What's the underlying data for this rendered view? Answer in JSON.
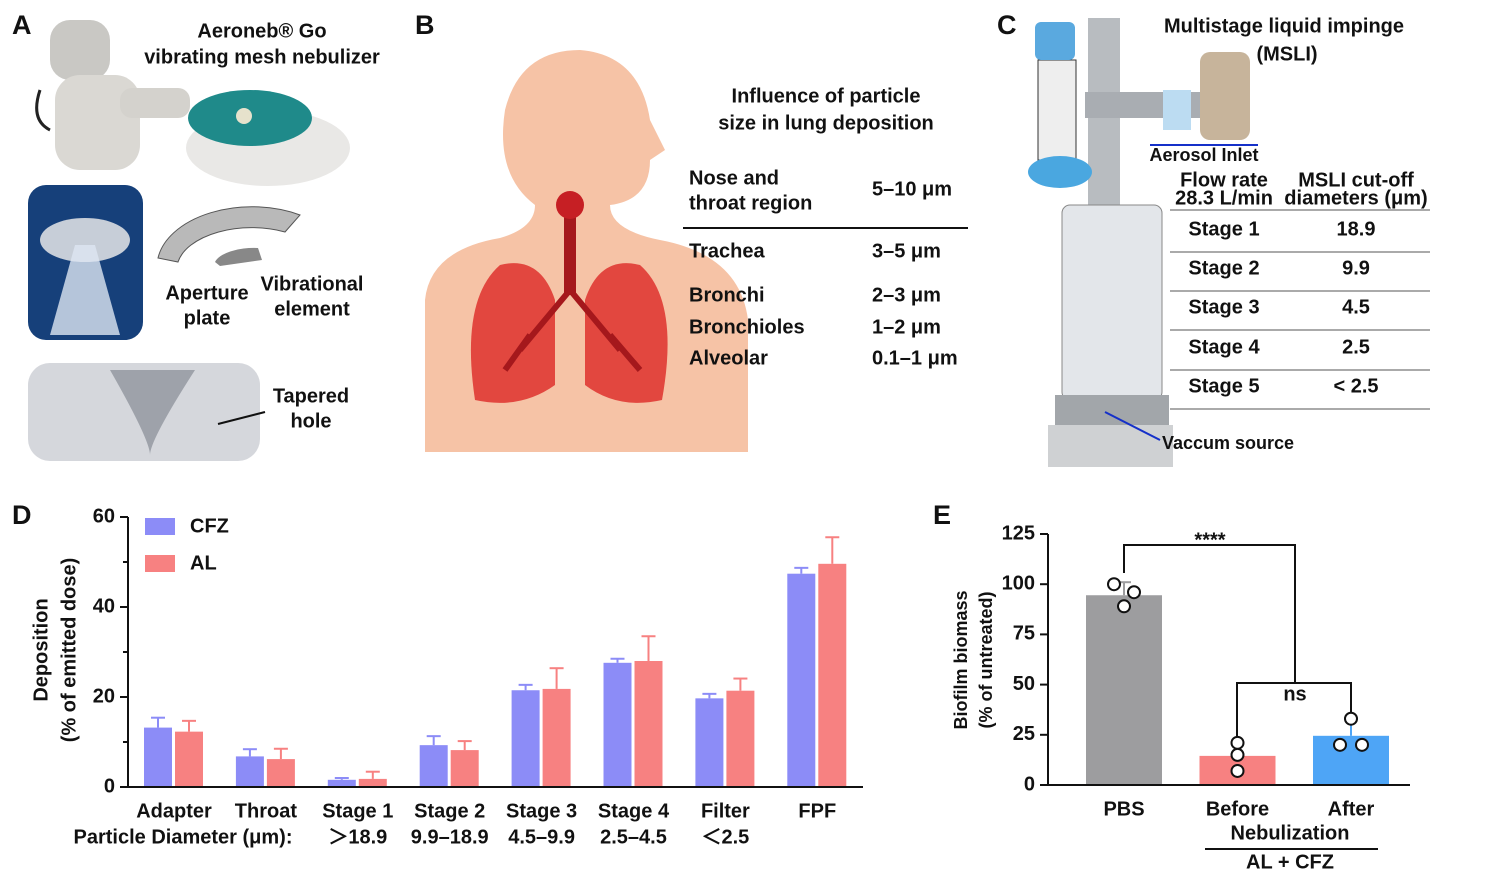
{
  "panel_a": {
    "label": "A",
    "title": [
      "Aeroneb® Go",
      "vibrating mesh nebulizer"
    ],
    "aperture": [
      "Aperture",
      "plate"
    ],
    "vibrational": [
      "Vibrational",
      "element"
    ],
    "tapered": [
      "Tapered",
      "hole"
    ]
  },
  "panel_b": {
    "label": "B",
    "title": [
      "Influence of particle",
      "size in lung deposition"
    ],
    "rows": [
      {
        "region": [
          "Nose and",
          "throat region"
        ],
        "size": "5–10 μm"
      },
      {
        "region": [
          "Trachea"
        ],
        "size": "3–5 μm"
      },
      {
        "region": [
          "Bronchi"
        ],
        "size": "2–3 μm"
      },
      {
        "region": [
          "Bronchioles"
        ],
        "size": "1–2 μm"
      },
      {
        "region": [
          "Alveolar"
        ],
        "size": "0.1–1 μm"
      }
    ]
  },
  "panel_c": {
    "label": "C",
    "title": [
      "Multistage liquid impinge",
      "(MSLI)"
    ],
    "inlet": "Aerosol Inlet",
    "vacuum": "Vaccum source",
    "table": {
      "header": [
        [
          "Flow rate",
          "28.3 L/min"
        ],
        [
          "MSLI cut-off",
          "diameters (μm)"
        ]
      ],
      "rows": [
        [
          "Stage 1",
          "18.9"
        ],
        [
          "Stage 2",
          "9.9"
        ],
        [
          "Stage 3",
          "4.5"
        ],
        [
          "Stage 4",
          "2.5"
        ],
        [
          "Stage 5",
          "< 2.5"
        ]
      ]
    }
  },
  "chart_data": [
    {
      "type": "bar",
      "label": "D",
      "ylabel": [
        "Deposition",
        "(% of emitted dose)"
      ],
      "categories": [
        "Adapter",
        "Throat",
        "Stage 1",
        "Stage 2",
        "Stage 3",
        "Stage 4",
        "Filter",
        "FPF"
      ],
      "category_sublabels": [
        null,
        null,
        "＞18.9",
        "9.9–18.9",
        "4.5–9.9",
        "2.5–4.5",
        "＜2.5",
        null
      ],
      "sublabel_title": "Particle Diameter (μm):",
      "ylim": [
        0,
        60
      ],
      "yticks": [
        0,
        20,
        40,
        60
      ],
      "yminorticks": [
        10,
        30,
        50
      ],
      "legend": "top-left",
      "series": [
        {
          "name": "CFZ",
          "color": "#8c8cf7",
          "values": [
            13.2,
            6.8,
            1.6,
            9.3,
            21.5,
            27.6,
            19.7,
            47.4
          ],
          "errors": [
            2.2,
            1.6,
            0.4,
            2.0,
            1.2,
            0.9,
            1.0,
            1.3
          ]
        },
        {
          "name": "AL",
          "color": "#f78181",
          "values": [
            12.3,
            6.2,
            1.8,
            8.2,
            21.8,
            28.0,
            21.4,
            49.6
          ],
          "errors": [
            2.4,
            2.3,
            1.6,
            2.0,
            4.6,
            5.5,
            2.7,
            5.9
          ]
        }
      ]
    },
    {
      "type": "bar",
      "label": "E",
      "ylabel": [
        "Biofilm biomass",
        "(% of untreated)"
      ],
      "categories": [
        "PBS",
        "Before",
        "After"
      ],
      "group_sublabel": "Nebulization",
      "group_label": "AL + CFZ",
      "ylim": [
        0,
        125
      ],
      "yticks": [
        0,
        25,
        50,
        75,
        100,
        125
      ],
      "values": [
        94.5,
        14.5,
        24.5
      ],
      "errors": [
        6.5,
        6.5,
        8.5
      ],
      "colors": [
        "#9d9d9f",
        "#f78181",
        "#4ea5f6"
      ],
      "points": [
        [
          100,
          96,
          89
        ],
        [
          21,
          15,
          7
        ],
        [
          33,
          20,
          20
        ]
      ],
      "annotations": [
        "****",
        "ns"
      ]
    }
  ]
}
